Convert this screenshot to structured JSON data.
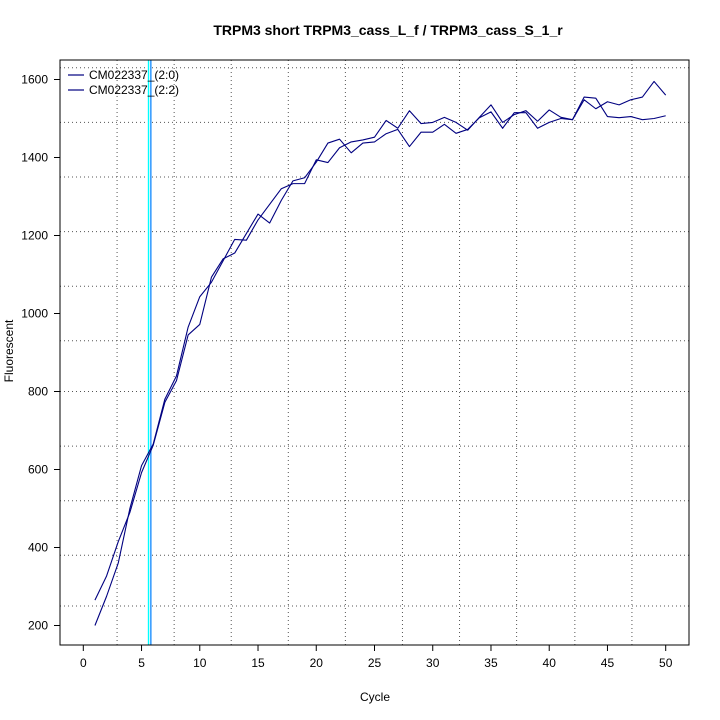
{
  "chart_data": {
    "type": "line",
    "title": "TRPM3 short TRPM3_cass_L_f / TRPM3_cass_S_1_r",
    "xlabel": "Cycle",
    "ylabel": "Fluorescent",
    "xlim": [
      -2.0,
      52.0
    ],
    "ylim": [
      150,
      1650
    ],
    "x_ticks": [
      0,
      5,
      10,
      15,
      20,
      25,
      30,
      35,
      40,
      45,
      50
    ],
    "y_ticks": [
      200,
      400,
      600,
      800,
      1000,
      1200,
      1400,
      1600
    ],
    "x_grid": [
      2.9,
      7.8,
      12.7,
      17.6,
      22.5,
      27.4,
      32.3,
      37.2,
      42.2,
      47.1
    ],
    "y_grid": [
      250,
      380,
      520,
      660,
      800,
      930,
      1070,
      1210,
      1350,
      1490,
      1630
    ],
    "grid": true,
    "grid_style": "dotted",
    "threshold_lines": {
      "x": [
        5.6,
        5.8
      ],
      "colors": [
        "#00ffff",
        "#1e90ff"
      ]
    },
    "legend_placement": "top-left",
    "series": [
      {
        "name": "CM022337_(2:0)",
        "color": "#000080",
        "x": [
          1,
          2,
          3,
          4,
          5,
          6,
          7,
          8,
          9,
          10,
          11,
          12,
          13,
          14,
          15,
          16,
          17,
          18,
          19,
          20,
          21,
          22,
          23,
          24,
          25,
          26,
          27,
          28,
          29,
          30,
          31,
          32,
          33,
          34,
          35,
          36,
          37,
          38,
          39,
          40,
          41,
          42,
          43,
          44,
          45,
          46,
          47,
          48,
          49,
          50
        ],
        "values": [
          265,
          327,
          415,
          490,
          592,
          662,
          772,
          828,
          945,
          972,
          1093,
          1140,
          1155,
          1205,
          1255,
          1232,
          1290,
          1340,
          1348,
          1388,
          1437,
          1447,
          1412,
          1437,
          1440,
          1461,
          1472,
          1428,
          1465,
          1465,
          1485,
          1462,
          1472,
          1502,
          1517,
          1475,
          1515,
          1515,
          1475,
          1490,
          1500,
          1497,
          1548,
          1525,
          1543,
          1535,
          1548,
          1555,
          1595,
          1560
        ]
      },
      {
        "name": "CM022337_(2:2)",
        "color": "#000080",
        "x": [
          1,
          2,
          3,
          4,
          5,
          6,
          7,
          8,
          9,
          10,
          11,
          12,
          13,
          14,
          15,
          16,
          17,
          18,
          19,
          20,
          21,
          22,
          23,
          24,
          25,
          26,
          27,
          28,
          29,
          30,
          31,
          32,
          33,
          34,
          35,
          36,
          37,
          38,
          39,
          40,
          41,
          42,
          43,
          44,
          45,
          46,
          47,
          48,
          49,
          50
        ],
        "values": [
          200,
          275,
          360,
          500,
          610,
          665,
          780,
          840,
          965,
          1043,
          1080,
          1135,
          1190,
          1188,
          1240,
          1280,
          1320,
          1333,
          1333,
          1394,
          1387,
          1425,
          1440,
          1445,
          1452,
          1495,
          1475,
          1520,
          1487,
          1490,
          1503,
          1490,
          1470,
          1503,
          1535,
          1490,
          1510,
          1520,
          1493,
          1522,
          1503,
          1497,
          1555,
          1552,
          1505,
          1502,
          1505,
          1497,
          1500,
          1507
        ]
      }
    ]
  }
}
